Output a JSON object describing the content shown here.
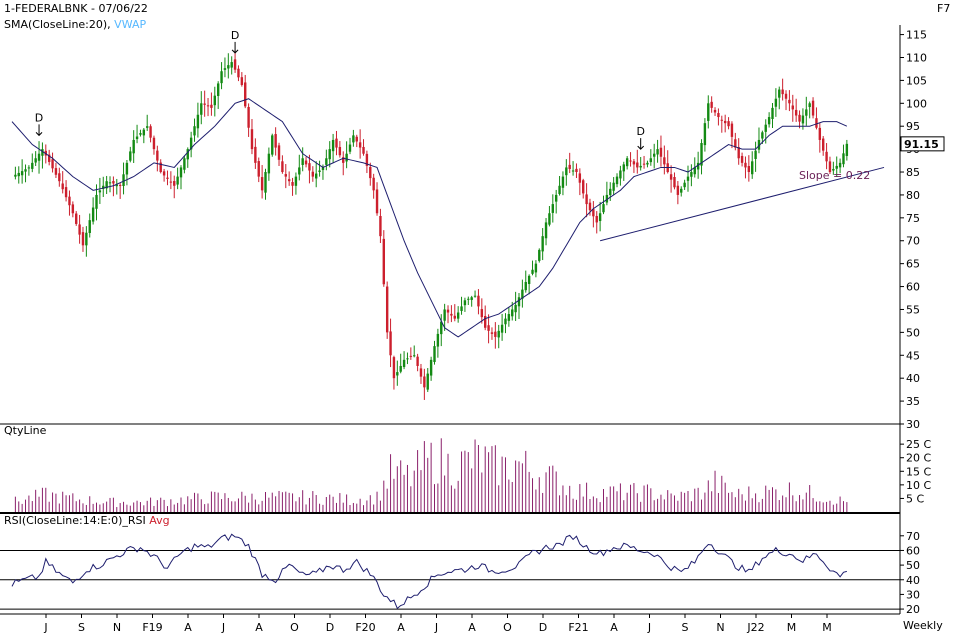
{
  "header": {
    "symbol_line": "1-FEDERALBNK - 07/06/22",
    "indicator_prefix": "SMA(CloseLine:20),",
    "indicator_vwap": "VWAP",
    "hotkey": "F7"
  },
  "colors": {
    "bullish": "#138a13",
    "bearish": "#cc1f2d",
    "sma": "#1e1e6e",
    "vwap": "#56b8ff",
    "volume": "#8a1f6a",
    "rsi_label": "#6a1f55",
    "last_price_bg": "#ffffff",
    "trendline": "#1e1e6e",
    "grid": "#000000"
  },
  "chart_data": [
    {
      "type": "candlestick",
      "panel": "price",
      "title": "1-FEDERALBNK - 07/06/22",
      "interval": "Weekly",
      "y_ticks": [
        115,
        110,
        105,
        100,
        95,
        90,
        85,
        80,
        75,
        70,
        65,
        60,
        55,
        50,
        45,
        40,
        35,
        30
      ],
      "ylim": [
        30,
        116
      ],
      "x_ticks": [
        "J",
        "S",
        "N",
        "F19",
        "A",
        "J",
        "A",
        "O",
        "D",
        "F20",
        "A",
        "J",
        "A",
        "O",
        "D",
        "F21",
        "A",
        "J",
        "S",
        "N",
        "J22",
        "M",
        "M"
      ],
      "last_price": "91.15",
      "sma_label": "SMA(CloseLine:20)",
      "close_anchors": [
        [
          0,
          84
        ],
        [
          5,
          86
        ],
        [
          9,
          90
        ],
        [
          14,
          83
        ],
        [
          18,
          76
        ],
        [
          21,
          69
        ],
        [
          25,
          80
        ],
        [
          28,
          83
        ],
        [
          32,
          82
        ],
        [
          36,
          92
        ],
        [
          40,
          95
        ],
        [
          44,
          85
        ],
        [
          48,
          82
        ],
        [
          52,
          90
        ],
        [
          56,
          100
        ],
        [
          59,
          99
        ],
        [
          62,
          107
        ],
        [
          65,
          109
        ],
        [
          68,
          104
        ],
        [
          71,
          90
        ],
        [
          74,
          81
        ],
        [
          77,
          93
        ],
        [
          80,
          85
        ],
        [
          83,
          82
        ],
        [
          86,
          88
        ],
        [
          89,
          84
        ],
        [
          92,
          86
        ],
        [
          95,
          92
        ],
        [
          98,
          87
        ],
        [
          101,
          93
        ],
        [
          104,
          89
        ],
        [
          107,
          81
        ],
        [
          109,
          71
        ],
        [
          111,
          50
        ],
        [
          113,
          40
        ],
        [
          116,
          44
        ],
        [
          119,
          45
        ],
        [
          122,
          38
        ],
        [
          125,
          47
        ],
        [
          128,
          55
        ],
        [
          131,
          53
        ],
        [
          134,
          57
        ],
        [
          137,
          58
        ],
        [
          140,
          51
        ],
        [
          143,
          49
        ],
        [
          146,
          53
        ],
        [
          149,
          56
        ],
        [
          152,
          61
        ],
        [
          155,
          65
        ],
        [
          158,
          74
        ],
        [
          161,
          80
        ],
        [
          164,
          86
        ],
        [
          167,
          85
        ],
        [
          170,
          78
        ],
        [
          173,
          74
        ],
        [
          176,
          80
        ],
        [
          179,
          84
        ],
        [
          182,
          88
        ],
        [
          185,
          86
        ],
        [
          188,
          87
        ],
        [
          191,
          90
        ],
        [
          194,
          85
        ],
        [
          197,
          80
        ],
        [
          200,
          84
        ],
        [
          203,
          87
        ],
        [
          206,
          100
        ],
        [
          209,
          97
        ],
        [
          212,
          95
        ],
        [
          215,
          88
        ],
        [
          218,
          85
        ],
        [
          221,
          92
        ],
        [
          224,
          97
        ],
        [
          227,
          103
        ],
        [
          230,
          100
        ],
        [
          233,
          96
        ],
        [
          236,
          100
        ],
        [
          239,
          92
        ],
        [
          242,
          85
        ],
        [
          245,
          87
        ],
        [
          247,
          91.15
        ]
      ],
      "sma_anchors": [
        [
          0,
          96
        ],
        [
          6,
          91
        ],
        [
          12,
          88
        ],
        [
          18,
          84
        ],
        [
          24,
          81
        ],
        [
          30,
          82
        ],
        [
          36,
          84
        ],
        [
          42,
          87
        ],
        [
          48,
          86
        ],
        [
          54,
          91
        ],
        [
          60,
          95
        ],
        [
          66,
          100
        ],
        [
          70,
          101
        ],
        [
          76,
          98
        ],
        [
          80,
          96
        ],
        [
          86,
          89
        ],
        [
          92,
          86
        ],
        [
          98,
          88
        ],
        [
          104,
          87
        ],
        [
          108,
          86
        ],
        [
          112,
          78
        ],
        [
          116,
          70
        ],
        [
          120,
          63
        ],
        [
          124,
          57
        ],
        [
          128,
          51
        ],
        [
          132,
          49
        ],
        [
          136,
          51
        ],
        [
          140,
          53
        ],
        [
          144,
          54
        ],
        [
          148,
          56
        ],
        [
          152,
          58
        ],
        [
          156,
          60
        ],
        [
          160,
          64
        ],
        [
          164,
          69
        ],
        [
          168,
          74
        ],
        [
          172,
          77
        ],
        [
          176,
          79
        ],
        [
          180,
          81
        ],
        [
          184,
          84
        ],
        [
          188,
          85
        ],
        [
          192,
          86
        ],
        [
          196,
          86
        ],
        [
          200,
          85
        ],
        [
          204,
          87
        ],
        [
          208,
          89
        ],
        [
          212,
          91
        ],
        [
          216,
          90
        ],
        [
          220,
          90
        ],
        [
          224,
          93
        ],
        [
          228,
          95
        ],
        [
          232,
          95
        ],
        [
          236,
          95
        ],
        [
          240,
          96
        ],
        [
          244,
          96
        ],
        [
          247,
          95
        ]
      ],
      "annotations": [
        {
          "text": "D",
          "bar": 8,
          "price": 93
        },
        {
          "text": "D",
          "bar": 66,
          "price": 111
        },
        {
          "text": "D",
          "bar": 186,
          "price": 90
        }
      ],
      "trendline": {
        "from": [
          174,
          70
        ],
        "to": [
          258,
          86
        ],
        "label": "Slope = 0.22"
      }
    },
    {
      "type": "bar",
      "panel": "volume",
      "title": "QtyLine",
      "y_ticks": [
        "25 C",
        "20 C",
        "15 C",
        "10 C",
        "5 C"
      ],
      "y_values": [
        25,
        20,
        15,
        10,
        5
      ],
      "ylim": [
        0,
        28
      ],
      "volume_anchors": [
        [
          0,
          4
        ],
        [
          10,
          7
        ],
        [
          20,
          5
        ],
        [
          30,
          4
        ],
        [
          40,
          4
        ],
        [
          50,
          5
        ],
        [
          60,
          6
        ],
        [
          70,
          6
        ],
        [
          80,
          6
        ],
        [
          90,
          6
        ],
        [
          100,
          5
        ],
        [
          108,
          6
        ],
        [
          112,
          16
        ],
        [
          118,
          14
        ],
        [
          122,
          20
        ],
        [
          126,
          22
        ],
        [
          130,
          18
        ],
        [
          134,
          20
        ],
        [
          138,
          22
        ],
        [
          142,
          19
        ],
        [
          146,
          18
        ],
        [
          150,
          20
        ],
        [
          154,
          16
        ],
        [
          158,
          15
        ],
        [
          162,
          12
        ],
        [
          166,
          9
        ],
        [
          172,
          8
        ],
        [
          180,
          8
        ],
        [
          188,
          8
        ],
        [
          196,
          6
        ],
        [
          204,
          8
        ],
        [
          208,
          12
        ],
        [
          214,
          7
        ],
        [
          222,
          8
        ],
        [
          230,
          9
        ],
        [
          238,
          7
        ],
        [
          247,
          4
        ]
      ]
    },
    {
      "type": "line",
      "panel": "rsi",
      "title": "RSI(CloseLine:14:E:0)_RSI",
      "avg_label": "Avg",
      "y_ticks": [
        70,
        60,
        50,
        40,
        30,
        20
      ],
      "ylim": [
        18,
        76
      ],
      "reference_lines": [
        60,
        40,
        20
      ],
      "rsi_anchors": [
        [
          0,
          37
        ],
        [
          4,
          40
        ],
        [
          8,
          42
        ],
        [
          10,
          52
        ],
        [
          14,
          44
        ],
        [
          18,
          38
        ],
        [
          22,
          47
        ],
        [
          26,
          50
        ],
        [
          30,
          55
        ],
        [
          34,
          60
        ],
        [
          38,
          62
        ],
        [
          42,
          56
        ],
        [
          46,
          48
        ],
        [
          50,
          58
        ],
        [
          54,
          63
        ],
        [
          58,
          62
        ],
        [
          62,
          68
        ],
        [
          66,
          70
        ],
        [
          70,
          63
        ],
        [
          74,
          44
        ],
        [
          78,
          40
        ],
        [
          82,
          50
        ],
        [
          86,
          43
        ],
        [
          90,
          44
        ],
        [
          94,
          50
        ],
        [
          98,
          47
        ],
        [
          102,
          52
        ],
        [
          106,
          44
        ],
        [
          108,
          38
        ],
        [
          110,
          30
        ],
        [
          114,
          22
        ],
        [
          118,
          28
        ],
        [
          122,
          36
        ],
        [
          126,
          44
        ],
        [
          130,
          46
        ],
        [
          134,
          47
        ],
        [
          138,
          50
        ],
        [
          142,
          46
        ],
        [
          146,
          47
        ],
        [
          150,
          50
        ],
        [
          154,
          58
        ],
        [
          158,
          62
        ],
        [
          162,
          64
        ],
        [
          166,
          70
        ],
        [
          170,
          62
        ],
        [
          174,
          58
        ],
        [
          178,
          62
        ],
        [
          182,
          63
        ],
        [
          186,
          60
        ],
        [
          190,
          58
        ],
        [
          194,
          50
        ],
        [
          198,
          45
        ],
        [
          202,
          52
        ],
        [
          206,
          66
        ],
        [
          210,
          58
        ],
        [
          214,
          50
        ],
        [
          218,
          45
        ],
        [
          222,
          55
        ],
        [
          226,
          60
        ],
        [
          230,
          58
        ],
        [
          234,
          53
        ],
        [
          238,
          58
        ],
        [
          242,
          48
        ],
        [
          245,
          42
        ],
        [
          247,
          47
        ]
      ]
    }
  ],
  "footer": {
    "interval_label": "Weekly"
  }
}
